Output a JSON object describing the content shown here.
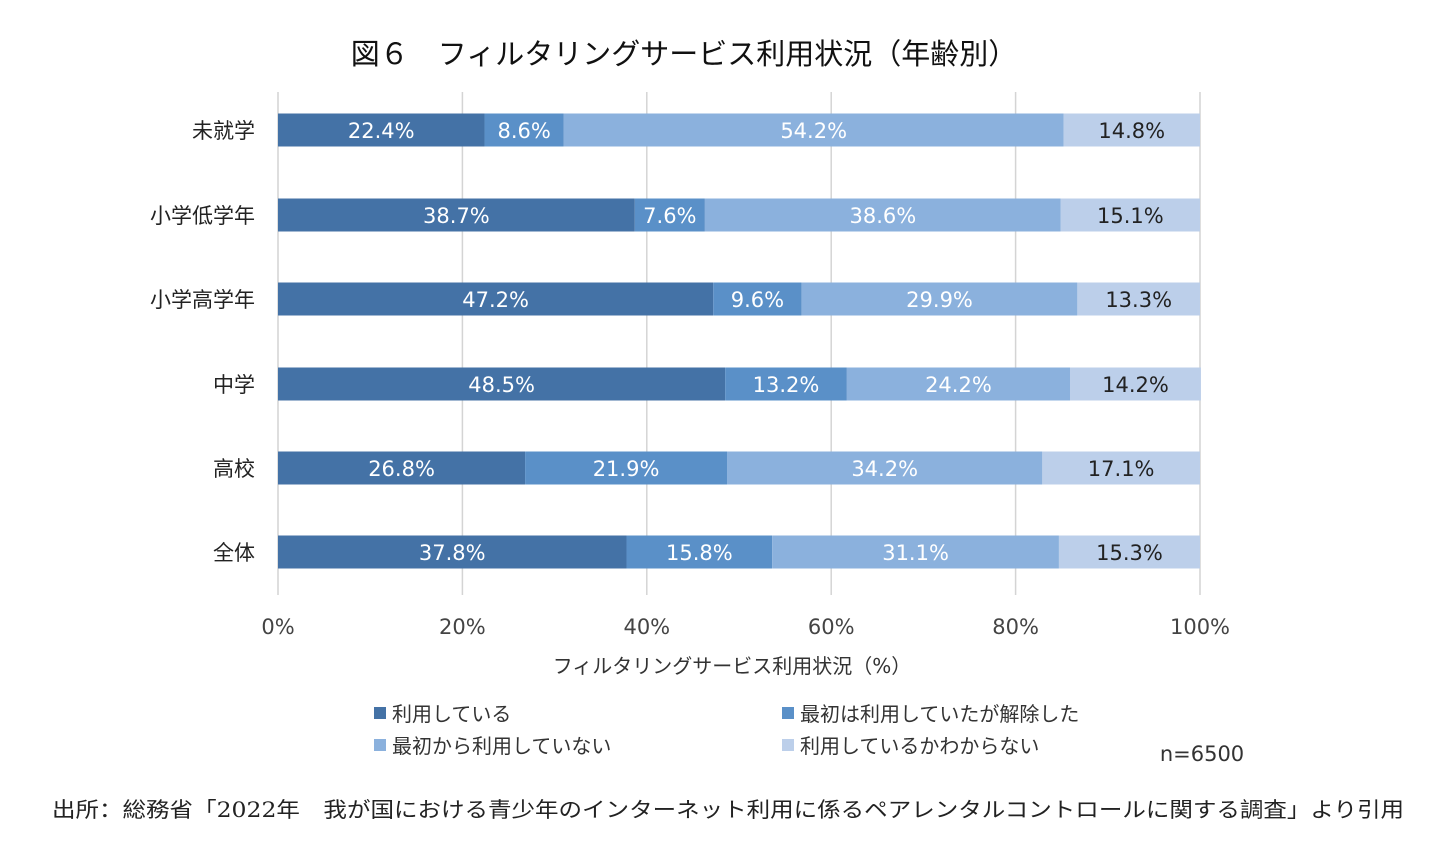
{
  "chart_data": {
    "type": "bar",
    "orientation": "horizontal",
    "stacked": true,
    "title": "図６　フィルタリングサービス利用状況（年齢別）",
    "xlabel": "フィルタリングサービス利用状況（%）",
    "ylabel": "",
    "xlim": [
      0,
      100
    ],
    "x_ticks": [
      "0%",
      "20%",
      "40%",
      "60%",
      "80%",
      "100%"
    ],
    "grid": true,
    "legend_position": "bottom",
    "categories": [
      "未就学",
      "小学低学年",
      "小学高学年",
      "中学",
      "高校",
      "全体"
    ],
    "series": [
      {
        "name": "利用している",
        "color": "#4472a6",
        "values": [
          22.4,
          38.7,
          47.2,
          48.5,
          26.8,
          37.8
        ]
      },
      {
        "name": "最初は利用していたが解除した",
        "color": "#5a90c8",
        "values": [
          8.6,
          7.6,
          9.6,
          13.2,
          21.9,
          15.8
        ]
      },
      {
        "name": "最初から利用していない",
        "color": "#8bb1dd",
        "values": [
          54.2,
          38.6,
          29.9,
          24.2,
          34.2,
          31.1
        ]
      },
      {
        "name": "利用しているかわからない",
        "color": "#bccfea",
        "values": [
          14.8,
          15.1,
          13.3,
          14.2,
          17.1,
          15.3
        ]
      }
    ],
    "sample_note": "n=6500",
    "source": "出所：総務省「2022年　我が国における青少年のインターネット利用に係るペアレンタルコントロールに関する調査」より引用"
  }
}
